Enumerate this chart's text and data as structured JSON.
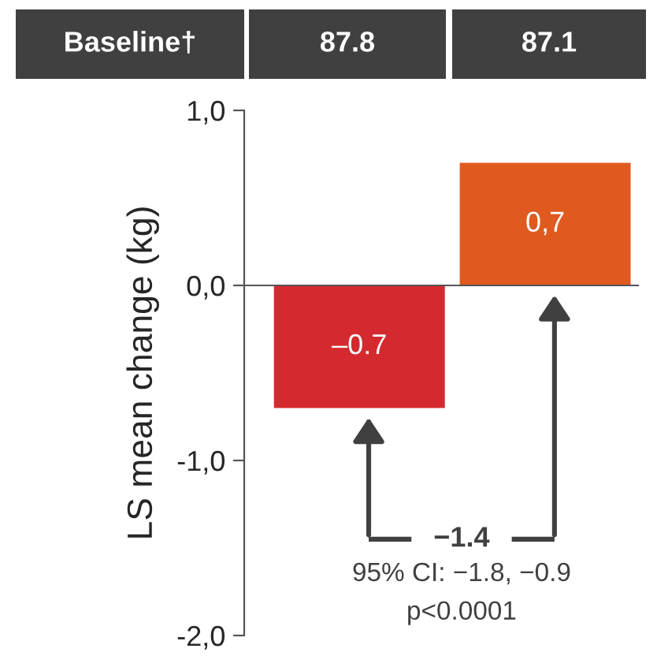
{
  "chart_data": {
    "type": "bar",
    "ylabel": "LS mean change (kg)",
    "categories": [
      null,
      null
    ],
    "values": [
      -0.7,
      0.7
    ],
    "colors": [
      "#d42a2f",
      "#e05a20"
    ],
    "value_labels": [
      "–0.7",
      "0,7"
    ],
    "ylim": [
      -2.0,
      1.0
    ],
    "yticks": [
      {
        "value": 1.0,
        "label": "1,0"
      },
      {
        "value": 0.0,
        "label": "0,0"
      },
      {
        "value": -1.0,
        "label": "-1,0"
      },
      {
        "value": -2.0,
        "label": "-2,0"
      }
    ],
    "tick_labels": "y",
    "annotations": [
      "Baseline†",
      "87.8",
      "87.1",
      "−1.4",
      "95% CI: −1.8, −0.9",
      "p<0.0001"
    ]
  }
}
